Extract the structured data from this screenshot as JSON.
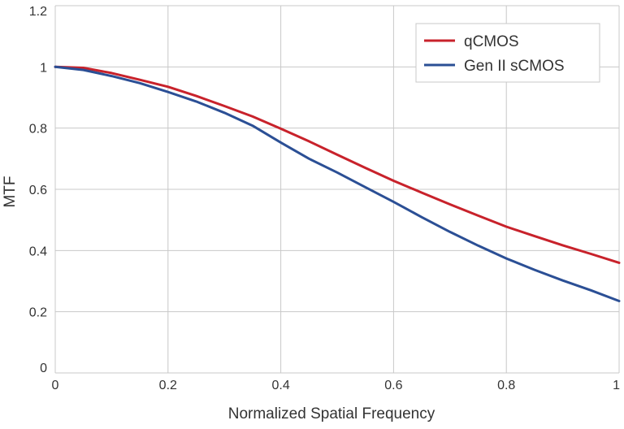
{
  "chart_data": {
    "type": "line",
    "xlabel": "Normalized Spatial Frequency",
    "ylabel": "MTF",
    "xlim": [
      0,
      1
    ],
    "ylim": [
      0,
      1.2
    ],
    "xticks": [
      {
        "value": 0,
        "label": "0"
      },
      {
        "value": 0.2,
        "label": "0.2"
      },
      {
        "value": 0.4,
        "label": "0.4"
      },
      {
        "value": 0.6,
        "label": "0.6"
      },
      {
        "value": 0.8,
        "label": "0.8"
      },
      {
        "value": 1,
        "label": "1"
      }
    ],
    "yticks": [
      {
        "value": 0,
        "label": "0"
      },
      {
        "value": 0.2,
        "label": "0.2"
      },
      {
        "value": 0.4,
        "label": "0.4"
      },
      {
        "value": 0.6,
        "label": "0.6"
      },
      {
        "value": 0.8,
        "label": "0.8"
      },
      {
        "value": 1,
        "label": "1"
      },
      {
        "value": 1.2,
        "label": "1.2"
      }
    ],
    "grid": true,
    "legend_position": "top-right",
    "series": [
      {
        "name": "qCMOS",
        "color": "#c8222b",
        "x": [
          0,
          0.05,
          0.1,
          0.15,
          0.2,
          0.25,
          0.3,
          0.35,
          0.4,
          0.45,
          0.5,
          0.55,
          0.6,
          0.65,
          0.7,
          0.75,
          0.8,
          0.85,
          0.9,
          0.95,
          1.0
        ],
        "y": [
          1.0,
          0.997,
          0.98,
          0.958,
          0.935,
          0.905,
          0.872,
          0.838,
          0.798,
          0.757,
          0.713,
          0.67,
          0.628,
          0.589,
          0.551,
          0.514,
          0.478,
          0.447,
          0.417,
          0.389,
          0.36
        ]
      },
      {
        "name": "Gen II sCMOS",
        "color": "#2b4f95",
        "x": [
          0,
          0.05,
          0.1,
          0.15,
          0.2,
          0.25,
          0.3,
          0.35,
          0.4,
          0.45,
          0.5,
          0.55,
          0.6,
          0.65,
          0.7,
          0.75,
          0.8,
          0.85,
          0.9,
          0.95,
          1.0
        ],
        "y": [
          1.0,
          0.99,
          0.97,
          0.947,
          0.918,
          0.887,
          0.85,
          0.808,
          0.753,
          0.7,
          0.655,
          0.607,
          0.559,
          0.509,
          0.461,
          0.416,
          0.374,
          0.337,
          0.302,
          0.27,
          0.235
        ]
      }
    ]
  }
}
